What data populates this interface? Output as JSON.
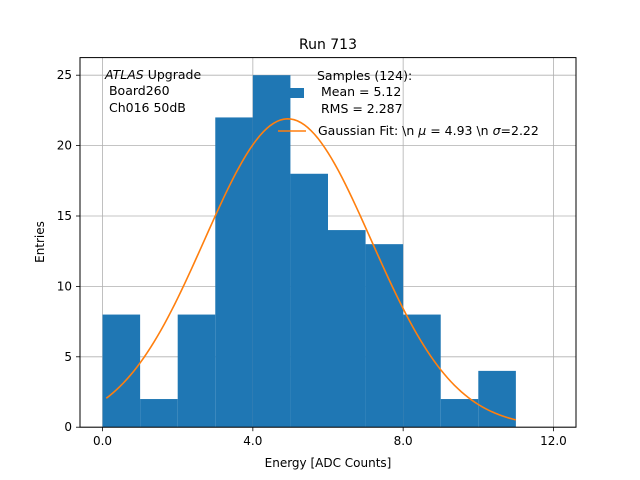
{
  "chart_data": {
    "type": "histogram",
    "title": "Run 713",
    "xlabel": "Energy [ADC Counts]",
    "ylabel": "Entries",
    "xlim": [
      -0.6,
      12.6
    ],
    "ylim": [
      0,
      26.25
    ],
    "grid": true,
    "x_ticks": [
      0,
      4,
      8,
      12
    ],
    "x_tick_labels": [
      "0.0",
      "4.0",
      "8.0",
      "12.0"
    ],
    "y_ticks": [
      0,
      5,
      10,
      15,
      20,
      25
    ],
    "y_tick_labels": [
      "0",
      "5",
      "10",
      "15",
      "20",
      "25"
    ],
    "bins": [
      {
        "x0": 0,
        "x1": 1,
        "count": 8
      },
      {
        "x0": 1,
        "x1": 2,
        "count": 2
      },
      {
        "x0": 2,
        "x1": 3,
        "count": 8
      },
      {
        "x0": 3,
        "x1": 4,
        "count": 22
      },
      {
        "x0": 4,
        "x1": 5,
        "count": 25
      },
      {
        "x0": 5,
        "x1": 6,
        "count": 18
      },
      {
        "x0": 6,
        "x1": 7,
        "count": 14
      },
      {
        "x0": 7,
        "x1": 8,
        "count": 13
      },
      {
        "x0": 8,
        "x1": 9,
        "count": 8
      },
      {
        "x0": 9,
        "x1": 10,
        "count": 2
      },
      {
        "x0": 10,
        "x1": 11,
        "count": 4
      }
    ],
    "fit": {
      "type": "gaussian",
      "mu": 4.93,
      "sigma": 2.22,
      "amplitude": 21.9,
      "x_range": [
        0.1,
        11.0
      ]
    },
    "colors": {
      "bars": "#1f77b4",
      "fit": "#ff7f0e",
      "grid": "#b0b0b0"
    },
    "annotation": {
      "experiment": "ATLAS",
      "experiment_suffix": " Upgrade",
      "line2": " Board260",
      "line3": " Ch016 50dB"
    },
    "legend": {
      "placement": "top-right",
      "hist_line1": "Samples (124):",
      "hist_line2": " Mean = 5.12",
      "hist_line3": " RMS = 2.287",
      "fit_label_prefix": "Gaussian Fit: \\n ",
      "fit_label_mu_sym": "μ",
      "fit_label_mu_val": " = 4.93 \\n ",
      "fit_label_sigma_sym": "σ",
      "fit_label_sigma_val": "=2.22"
    }
  }
}
